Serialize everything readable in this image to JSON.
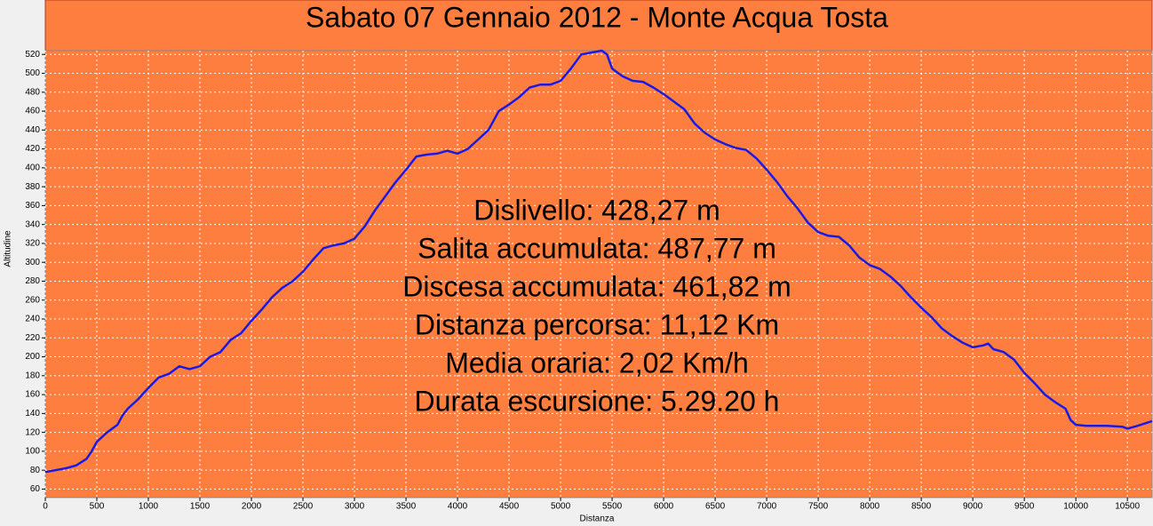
{
  "chart_data": {
    "type": "line",
    "title": "Sabato 07 Gennaio 2012 - Monte Acqua Tosta",
    "x_label": "Distanza",
    "y_label": "Altitudine",
    "annotations": [
      "Dislivello: 428,27 m",
      "Salita accumulata: 487,77 m",
      "Discesa accumulata: 461,82 m",
      "Distanza percorsa: 11,12 Km",
      "Media oraria: 2,02 Km/h",
      "Durata escursione: 5.29.20 h"
    ],
    "color": "#1a1ae6",
    "x": [
      0,
      200,
      300,
      400,
      450,
      500,
      600,
      700,
      750,
      800,
      900,
      1000,
      1100,
      1200,
      1300,
      1400,
      1500,
      1600,
      1700,
      1800,
      1900,
      2000,
      2100,
      2200,
      2300,
      2400,
      2500,
      2600,
      2700,
      2800,
      2900,
      3000,
      3100,
      3200,
      3300,
      3400,
      3500,
      3600,
      3700,
      3800,
      3900,
      4000,
      4100,
      4200,
      4300,
      4400,
      4500,
      4600,
      4700,
      4800,
      4900,
      5000,
      5100,
      5200,
      5300,
      5400,
      5450,
      5500,
      5600,
      5700,
      5800,
      5900,
      6000,
      6100,
      6200,
      6300,
      6400,
      6500,
      6600,
      6700,
      6800,
      6900,
      7000,
      7100,
      7200,
      7300,
      7400,
      7500,
      7600,
      7700,
      7800,
      7900,
      8000,
      8100,
      8200,
      8300,
      8400,
      8500,
      8600,
      8700,
      8800,
      8900,
      9000,
      9100,
      9150,
      9200,
      9300,
      9400,
      9500,
      9600,
      9700,
      9800,
      9900,
      9950,
      10000,
      10100,
      10300,
      10450,
      10500,
      10600,
      10740
    ],
    "values": [
      78,
      82,
      85,
      92,
      100,
      110,
      120,
      128,
      138,
      145,
      155,
      167,
      178,
      182,
      190,
      187,
      190,
      200,
      205,
      218,
      225,
      238,
      250,
      263,
      273,
      280,
      290,
      303,
      315,
      318,
      320,
      325,
      338,
      355,
      370,
      385,
      398,
      412,
      414,
      415,
      418,
      415,
      420,
      430,
      440,
      460,
      467,
      475,
      485,
      488,
      488,
      492,
      505,
      520,
      522,
      524,
      520,
      505,
      497,
      492,
      491,
      485,
      478,
      470,
      462,
      447,
      437,
      430,
      425,
      421,
      419,
      410,
      398,
      385,
      370,
      357,
      342,
      332,
      328,
      327,
      318,
      305,
      297,
      293,
      285,
      275,
      263,
      252,
      242,
      230,
      222,
      215,
      210,
      212,
      214,
      208,
      205,
      197,
      183,
      172,
      160,
      152,
      145,
      133,
      128,
      127,
      127,
      126,
      124,
      127,
      132
    ],
    "xlim": [
      0,
      10740
    ],
    "ylim": [
      51,
      524
    ],
    "xticks": [
      0,
      500,
      1000,
      1500,
      2000,
      2500,
      3000,
      3500,
      4000,
      4500,
      5000,
      5500,
      6000,
      6500,
      7000,
      7500,
      8000,
      8500,
      9000,
      9500,
      10000,
      10500
    ],
    "yticks": [
      60,
      80,
      100,
      120,
      140,
      160,
      180,
      200,
      220,
      240,
      260,
      280,
      300,
      320,
      340,
      360,
      380,
      400,
      420,
      440,
      460,
      480,
      500,
      520
    ],
    "grid": true
  }
}
